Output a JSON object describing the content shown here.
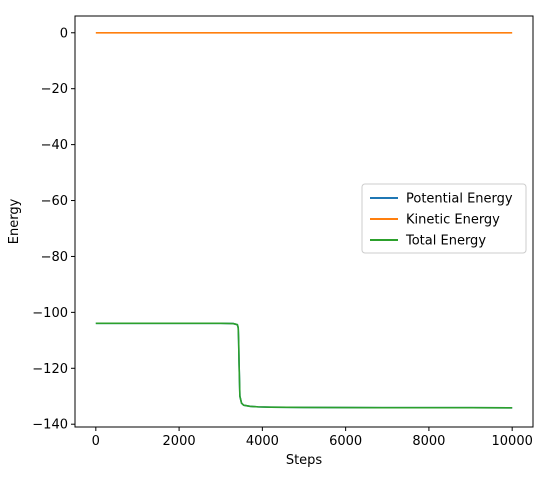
{
  "chart_data": {
    "type": "line",
    "title": "",
    "xlabel": "Steps",
    "ylabel": "Energy",
    "xlim": [
      -500,
      10500
    ],
    "ylim": [
      -141,
      6
    ],
    "xticks": [
      0,
      2000,
      4000,
      6000,
      8000,
      10000
    ],
    "xtick_labels": [
      "0",
      "2000",
      "4000",
      "6000",
      "8000",
      "10000"
    ],
    "yticks": [
      0,
      -20,
      -40,
      -60,
      -80,
      -100,
      -120,
      -140
    ],
    "ytick_labels": [
      "0",
      "−20",
      "−40",
      "−60",
      "−80",
      "−100",
      "−120",
      "−140"
    ],
    "grid": false,
    "legend_position": "center-right",
    "series": [
      {
        "name": "Potential Energy",
        "color": "#1f77b4",
        "x": [
          0,
          1000,
          2000,
          3000,
          3300,
          3400,
          3420,
          3430,
          3440,
          3460,
          3500,
          3550,
          3700,
          3900,
          4200,
          5000,
          6000,
          7000,
          8000,
          9000,
          10000
        ],
        "y": [
          -103.9,
          -103.9,
          -103.9,
          -103.9,
          -104.0,
          -104.4,
          -105.5,
          -110.0,
          -118.0,
          -130.0,
          -132.5,
          -133.2,
          -133.6,
          -133.8,
          -133.9,
          -134.0,
          -134.05,
          -134.1,
          -134.1,
          -134.1,
          -134.15
        ]
      },
      {
        "name": "Kinetic Energy",
        "color": "#ff7f0e",
        "x": [
          0,
          2000,
          4000,
          6000,
          8000,
          10000
        ],
        "y": [
          0,
          0,
          0,
          0,
          0,
          0
        ]
      },
      {
        "name": "Total Energy",
        "color": "#2ca02c",
        "x": [
          0,
          1000,
          2000,
          3000,
          3300,
          3400,
          3420,
          3430,
          3440,
          3460,
          3500,
          3550,
          3700,
          3900,
          4200,
          5000,
          6000,
          7000,
          8000,
          9000,
          10000
        ],
        "y": [
          -103.9,
          -103.9,
          -103.9,
          -103.9,
          -104.0,
          -104.4,
          -105.5,
          -110.0,
          -118.0,
          -130.0,
          -132.5,
          -133.2,
          -133.6,
          -133.8,
          -133.9,
          -134.0,
          -134.05,
          -134.1,
          -134.1,
          -134.1,
          -134.15
        ]
      }
    ]
  }
}
